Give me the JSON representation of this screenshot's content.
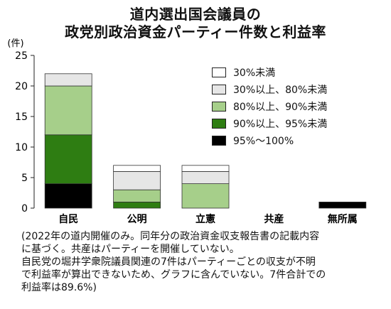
{
  "chart_data": {
    "type": "bar",
    "stacked": true,
    "title": "道内選出国会議員の",
    "subtitle": "政党別政治資金パーティー件数と利益率",
    "ylabel": "(件)",
    "ylim": [
      0,
      25
    ],
    "yticks": [
      0,
      5,
      10,
      15,
      20,
      25
    ],
    "categories": [
      "自民",
      "公明",
      "立憲",
      "共産",
      "無所属"
    ],
    "series": [
      {
        "name": "95%〜100%",
        "color": "#000000",
        "values": [
          4,
          0,
          0,
          0,
          1
        ]
      },
      {
        "name": "90%以上、95%未満",
        "color": "#2e7d12",
        "values": [
          8,
          1,
          0,
          0,
          0
        ]
      },
      {
        "name": "80%以上、90%未満",
        "color": "#a6cf8a",
        "values": [
          8,
          2,
          4,
          0,
          0
        ]
      },
      {
        "name": "30%以上、80%未満",
        "color": "#e6e6e6",
        "values": [
          2,
          3,
          2,
          0,
          0
        ]
      },
      {
        "name": "30%未満",
        "color": "#ffffff",
        "values": [
          0,
          1,
          1,
          0,
          0
        ]
      }
    ],
    "legend_order": [
      "30%未満",
      "30%以上、80%未満",
      "80%以上、90%未満",
      "90%以上、95%未満",
      "95%〜100%"
    ],
    "legend_position": "top-right",
    "grid": false
  },
  "notes": [
    "(2022年の道内開催のみ。同年分の政治資金収支報告書の記載内容",
    "に基づく。共産はパーティーを開催していない。",
    "自民党の堀井学衆院議員関連の7件はパーティーごとの収支が不明",
    "で利益率が算出できないため、グラフに含んでいない。7件合計での",
    "利益率は89.6%)"
  ]
}
